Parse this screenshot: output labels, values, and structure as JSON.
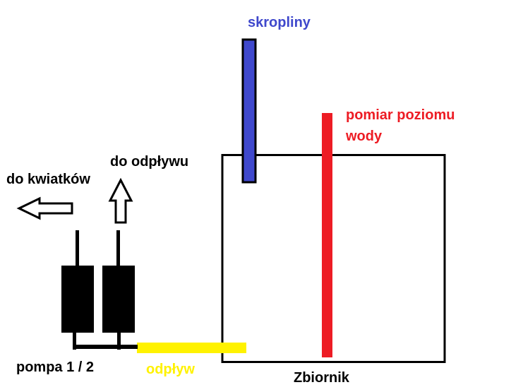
{
  "labels": {
    "condensate": "skropliny",
    "level_measurement_line1": "pomiar poziomu",
    "level_measurement_line2": "wody",
    "to_drain": "do odpływu",
    "to_flowers": "do kwiatków",
    "pump": "pompa 1 / 2",
    "outflow": "odpływ",
    "tank": "Zbiornik"
  },
  "colors": {
    "condensate": "#3f48cc",
    "level_measurement": "#ed1c24",
    "outflow": "#fff200",
    "structure": "#000000"
  }
}
